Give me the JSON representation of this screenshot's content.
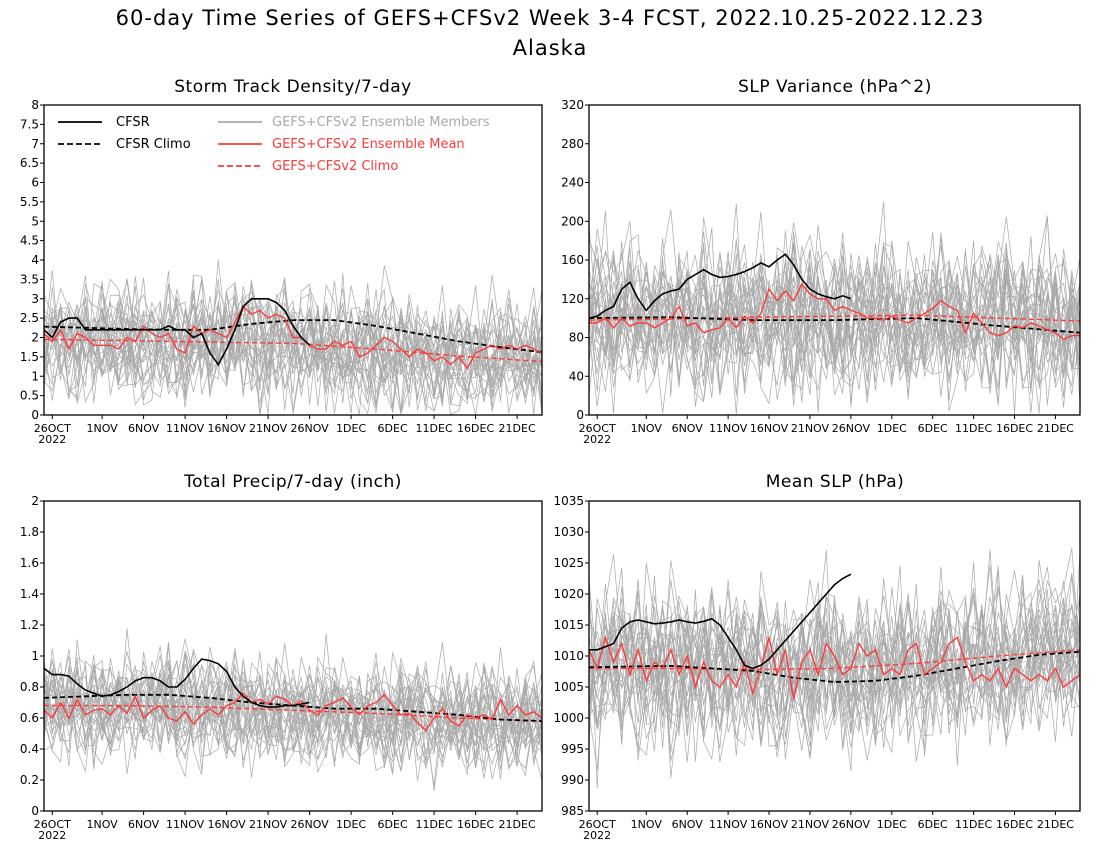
{
  "title": "60-day Time Series of GEFS+CFSv2 Week 3-4 FCST, 2022.10.25-2022.12.23",
  "subtitle": "Alaska",
  "colors": {
    "cfsr": "#000000",
    "members": "#a9a9a9",
    "ens_mean": "#ff3a3a",
    "gefs_climo": "#ff3a3a"
  },
  "legend": [
    {
      "label": "CFSR",
      "color": "#000000",
      "dash": false
    },
    {
      "label": "CFSR Climo",
      "color": "#000000",
      "dash": true
    },
    {
      "label": "GEFS+CFSv2 Ensemble Members",
      "color": "#a9a9a9",
      "dash": false
    },
    {
      "label": "GEFS+CFSv2 Ensemble Mean",
      "color": "#ff3a3a",
      "dash": false
    },
    {
      "label": "GEFS+CFSv2 Climo",
      "color": "#ff3a3a",
      "dash": true
    }
  ],
  "x_ticks": [
    "26OCT",
    "1NOV",
    "6NOV",
    "11NOV",
    "16NOV",
    "21NOV",
    "26NOV",
    "1DEC",
    "6DEC",
    "11DEC",
    "16DEC",
    "21DEC"
  ],
  "x_year_label": "2022",
  "chart_data": [
    {
      "type": "line",
      "title": "Storm Track Density/7-day",
      "ylim": [
        0,
        8
      ],
      "y_ticks": [
        "0",
        "0.5",
        "1",
        "1.5",
        "2",
        "2.5",
        "3",
        "3.5",
        "4",
        "4.5",
        "5",
        "5.5",
        "6",
        "6.5",
        "7",
        "7.5",
        "8"
      ],
      "x_range_days": [
        0,
        60
      ],
      "members": {
        "count": 30,
        "spread": 0.75,
        "peak": 6.0
      },
      "series": [
        {
          "name": "CFSR",
          "x": [
            0,
            1,
            2,
            3,
            4,
            5,
            6,
            7,
            8,
            9,
            10,
            11,
            12,
            13,
            14,
            15,
            16,
            17,
            18,
            19,
            20,
            21,
            22,
            23,
            24,
            25,
            26,
            27,
            28,
            29,
            30,
            31,
            32
          ],
          "values": [
            2.2,
            2.0,
            2.4,
            2.5,
            2.5,
            2.2,
            2.2,
            2.2,
            2.2,
            2.2,
            2.2,
            2.2,
            2.2,
            2.2,
            2.2,
            2.3,
            2.2,
            2.2,
            2.0,
            2.1,
            1.6,
            1.3,
            1.7,
            2.2,
            2.8,
            3.0,
            3.0,
            3.0,
            2.9,
            2.7,
            2.3,
            2.0,
            1.8
          ]
        },
        {
          "name": "CFSR Climo",
          "x": [
            0,
            5,
            10,
            15,
            20,
            25,
            30,
            35,
            40,
            45,
            50,
            55,
            60
          ],
          "values": [
            2.28,
            2.25,
            2.22,
            2.2,
            2.2,
            2.35,
            2.45,
            2.45,
            2.3,
            2.1,
            1.9,
            1.75,
            1.62
          ]
        },
        {
          "name": "GEFS+CFSv2 Ensemble Mean",
          "x": [
            0,
            1,
            2,
            3,
            4,
            5,
            6,
            7,
            8,
            9,
            10,
            11,
            12,
            13,
            14,
            15,
            16,
            17,
            18,
            19,
            20,
            21,
            22,
            23,
            24,
            25,
            26,
            27,
            28,
            29,
            30,
            31,
            32,
            33,
            34,
            35,
            36,
            37,
            38,
            39,
            40,
            41,
            42,
            43,
            44,
            45,
            46,
            47,
            48,
            49,
            50,
            51,
            52,
            53,
            54,
            55,
            56,
            57,
            58,
            59,
            60
          ],
          "values": [
            2.1,
            1.9,
            2.2,
            1.7,
            2.1,
            2.0,
            1.8,
            1.8,
            1.8,
            1.7,
            2.0,
            1.9,
            2.3,
            2.1,
            2.0,
            2.1,
            1.7,
            1.6,
            2.3,
            2.1,
            2.2,
            2.1,
            2.0,
            2.4,
            2.8,
            2.6,
            2.7,
            2.5,
            2.6,
            2.5,
            2.0,
            2.0,
            1.8,
            1.7,
            1.7,
            1.9,
            1.8,
            1.9,
            1.5,
            1.6,
            1.8,
            2.0,
            1.9,
            1.7,
            1.5,
            1.7,
            1.6,
            1.4,
            1.5,
            1.3,
            1.5,
            1.2,
            1.6,
            1.7,
            1.8,
            1.7,
            1.8,
            1.7,
            1.8,
            1.7,
            1.6
          ]
        },
        {
          "name": "GEFS+CFSv2 Climo",
          "x": [
            0,
            10,
            20,
            30,
            40,
            50,
            60
          ],
          "values": [
            1.95,
            1.92,
            1.88,
            1.85,
            1.7,
            1.52,
            1.38
          ]
        }
      ]
    },
    {
      "type": "line",
      "title": "SLP Variance (hPa^2)",
      "ylim": [
        0,
        320
      ],
      "y_ticks": [
        "0",
        "40",
        "80",
        "120",
        "160",
        "200",
        "240",
        "280",
        "320"
      ],
      "x_range_days": [
        0,
        60
      ],
      "members": {
        "count": 30,
        "spread": 40,
        "peak": 320
      },
      "series": [
        {
          "name": "CFSR",
          "x": [
            0,
            1,
            2,
            3,
            4,
            5,
            6,
            7,
            8,
            9,
            10,
            11,
            12,
            13,
            14,
            15,
            16,
            17,
            18,
            19,
            20,
            21,
            22,
            23,
            24,
            25,
            26,
            27,
            28,
            29,
            30,
            31,
            32
          ],
          "values": [
            100,
            102,
            108,
            112,
            130,
            137,
            120,
            108,
            118,
            125,
            128,
            130,
            140,
            145,
            150,
            145,
            142,
            143,
            145,
            148,
            152,
            157,
            153,
            160,
            166,
            155,
            140,
            130,
            125,
            122,
            120,
            123,
            120
          ]
        },
        {
          "name": "CFSR Climo",
          "x": [
            0,
            10,
            20,
            30,
            40,
            50,
            60
          ],
          "values": [
            100,
            101,
            98,
            98,
            100,
            92,
            85
          ]
        },
        {
          "name": "GEFS+CFSv2 Ensemble Mean",
          "x": [
            0,
            1,
            2,
            3,
            4,
            5,
            6,
            7,
            8,
            9,
            10,
            11,
            12,
            13,
            14,
            15,
            16,
            17,
            18,
            19,
            20,
            21,
            22,
            23,
            24,
            25,
            26,
            27,
            28,
            29,
            30,
            31,
            32,
            33,
            34,
            35,
            36,
            37,
            38,
            39,
            40,
            41,
            42,
            43,
            44,
            45,
            46,
            47,
            48,
            49,
            50,
            51,
            52,
            53,
            54,
            55,
            56,
            57,
            58,
            59,
            60
          ],
          "values": [
            95,
            95,
            100,
            90,
            100,
            92,
            95,
            95,
            90,
            95,
            100,
            112,
            92,
            95,
            85,
            88,
            90,
            100,
            90,
            102,
            95,
            105,
            130,
            118,
            128,
            118,
            135,
            125,
            120,
            120,
            108,
            112,
            108,
            105,
            100,
            100,
            98,
            102,
            98,
            95,
            100,
            105,
            110,
            118,
            112,
            108,
            85,
            105,
            95,
            85,
            82,
            85,
            92,
            90,
            95,
            92,
            88,
            85,
            78,
            82,
            82
          ]
        },
        {
          "name": "GEFS+CFSv2 Climo",
          "x": [
            0,
            10,
            20,
            30,
            40,
            50,
            60
          ],
          "values": [
            98,
            99,
            101,
            102,
            103,
            100,
            97
          ]
        }
      ]
    },
    {
      "type": "line",
      "title": "Total Precip/7-day (inch)",
      "ylim": [
        0,
        2
      ],
      "y_ticks": [
        "0",
        "0.2",
        "0.4",
        "0.6",
        "0.8",
        "1",
        "1.2",
        "1.4",
        "1.6",
        "1.8",
        "2"
      ],
      "x_range_days": [
        0,
        60
      ],
      "members": {
        "count": 30,
        "spread": 0.18,
        "peak": 1.5
      },
      "series": [
        {
          "name": "CFSR",
          "x": [
            0,
            1,
            2,
            3,
            4,
            5,
            6,
            7,
            8,
            9,
            10,
            11,
            12,
            13,
            14,
            15,
            16,
            17,
            18,
            19,
            20,
            21,
            22,
            23,
            24,
            25,
            26,
            27,
            28,
            29,
            30,
            31,
            32
          ],
          "values": [
            0.92,
            0.88,
            0.88,
            0.87,
            0.82,
            0.78,
            0.76,
            0.74,
            0.75,
            0.77,
            0.8,
            0.84,
            0.86,
            0.86,
            0.84,
            0.8,
            0.8,
            0.85,
            0.92,
            0.98,
            0.97,
            0.95,
            0.9,
            0.8,
            0.74,
            0.7,
            0.68,
            0.67,
            0.67,
            0.68,
            0.68,
            0.69,
            0.7
          ]
        },
        {
          "name": "CFSR Climo",
          "x": [
            0,
            5,
            10,
            15,
            20,
            25,
            30,
            35,
            40,
            45,
            50,
            55,
            60
          ],
          "values": [
            0.73,
            0.74,
            0.75,
            0.75,
            0.73,
            0.7,
            0.68,
            0.66,
            0.66,
            0.64,
            0.62,
            0.59,
            0.58
          ]
        },
        {
          "name": "GEFS+CFSv2 Ensemble Mean",
          "x": [
            0,
            1,
            2,
            3,
            4,
            5,
            6,
            7,
            8,
            9,
            10,
            11,
            12,
            13,
            14,
            15,
            16,
            17,
            18,
            19,
            20,
            21,
            22,
            23,
            24,
            25,
            26,
            27,
            28,
            29,
            30,
            31,
            32,
            33,
            34,
            35,
            36,
            37,
            38,
            39,
            40,
            41,
            42,
            43,
            44,
            45,
            46,
            47,
            48,
            49,
            50,
            51,
            52,
            53,
            54,
            55,
            56,
            57,
            58,
            59,
            60
          ],
          "values": [
            0.65,
            0.6,
            0.7,
            0.6,
            0.72,
            0.62,
            0.65,
            0.66,
            0.62,
            0.68,
            0.63,
            0.74,
            0.6,
            0.65,
            0.68,
            0.6,
            0.58,
            0.64,
            0.56,
            0.62,
            0.66,
            0.62,
            0.68,
            0.7,
            0.76,
            0.7,
            0.72,
            0.69,
            0.74,
            0.72,
            0.68,
            0.71,
            0.65,
            0.62,
            0.68,
            0.7,
            0.73,
            0.67,
            0.62,
            0.68,
            0.7,
            0.75,
            0.68,
            0.62,
            0.63,
            0.57,
            0.52,
            0.6,
            0.66,
            0.58,
            0.55,
            0.62,
            0.6,
            0.62,
            0.59,
            0.72,
            0.62,
            0.68,
            0.62,
            0.64,
            0.6
          ]
        },
        {
          "name": "GEFS+CFSv2 Climo",
          "x": [
            0,
            10,
            20,
            30,
            40,
            50,
            60
          ],
          "values": [
            0.68,
            0.68,
            0.67,
            0.65,
            0.63,
            0.6,
            0.58
          ]
        }
      ]
    },
    {
      "type": "line",
      "title": "Mean SLP (hPa)",
      "ylim": [
        985,
        1035
      ],
      "y_ticks": [
        "985",
        "990",
        "995",
        "1000",
        "1005",
        "1010",
        "1015",
        "1020",
        "1025",
        "1030",
        "1035"
      ],
      "x_range_days": [
        0,
        60
      ],
      "members": {
        "count": 30,
        "spread": 6.5,
        "peak": 1035
      },
      "series": [
        {
          "name": "CFSR",
          "x": [
            0,
            1,
            2,
            3,
            4,
            5,
            6,
            7,
            8,
            9,
            10,
            11,
            12,
            13,
            14,
            15,
            16,
            17,
            18,
            19,
            20,
            21,
            22,
            23,
            24,
            25,
            26,
            27,
            28,
            29,
            30,
            31,
            32
          ],
          "values": [
            1011,
            1011,
            1011.5,
            1012,
            1014.5,
            1015.5,
            1015.8,
            1015.5,
            1015.2,
            1015.3,
            1015.5,
            1015.8,
            1015.5,
            1015.3,
            1015.6,
            1016,
            1015,
            1013,
            1011,
            1008.5,
            1008,
            1008.5,
            1009.5,
            1011,
            1012.5,
            1014,
            1015.5,
            1017,
            1018.5,
            1020,
            1021.5,
            1022.5,
            1023.2
          ]
        },
        {
          "name": "CFSR Climo",
          "x": [
            0,
            5,
            10,
            15,
            20,
            25,
            30,
            35,
            40,
            45,
            50,
            55,
            60
          ],
          "values": [
            1008.2,
            1008.3,
            1008.4,
            1008,
            1007.6,
            1006.5,
            1005.8,
            1006,
            1006.8,
            1008,
            1009.2,
            1010.2,
            1010.7
          ]
        },
        {
          "name": "GEFS+CFSv2 Ensemble Mean",
          "x": [
            0,
            1,
            2,
            3,
            4,
            5,
            6,
            7,
            8,
            9,
            10,
            11,
            12,
            13,
            14,
            15,
            16,
            17,
            18,
            19,
            20,
            21,
            22,
            23,
            24,
            25,
            26,
            27,
            28,
            29,
            30,
            31,
            32,
            33,
            34,
            35,
            36,
            37,
            38,
            39,
            40,
            41,
            42,
            43,
            44,
            45,
            46,
            47,
            48,
            49,
            50,
            51,
            52,
            53,
            54,
            55,
            56,
            57,
            58,
            59,
            60
          ],
          "values": [
            1011,
            1008,
            1013,
            1009,
            1012,
            1007,
            1011,
            1006,
            1009,
            1008,
            1011,
            1007,
            1010,
            1005,
            1009,
            1006,
            1005,
            1007,
            1005,
            1009,
            1004,
            1008,
            1013,
            1007,
            1011,
            1003,
            1009,
            1011,
            1007,
            1012,
            1010,
            1007,
            1008,
            1012,
            1010,
            1011,
            1007,
            1008,
            1007,
            1011,
            1012,
            1007,
            1008,
            1009,
            1012,
            1013,
            1009,
            1006,
            1007,
            1006,
            1008,
            1005,
            1008,
            1007,
            1006,
            1007,
            1006,
            1008,
            1005,
            1006,
            1007
          ]
        },
        {
          "name": "GEFS+CFSv2 Climo",
          "x": [
            0,
            10,
            20,
            30,
            40,
            50,
            60
          ],
          "values": [
            1008,
            1008,
            1007.8,
            1008,
            1008.8,
            1010,
            1011
          ]
        }
      ]
    }
  ]
}
